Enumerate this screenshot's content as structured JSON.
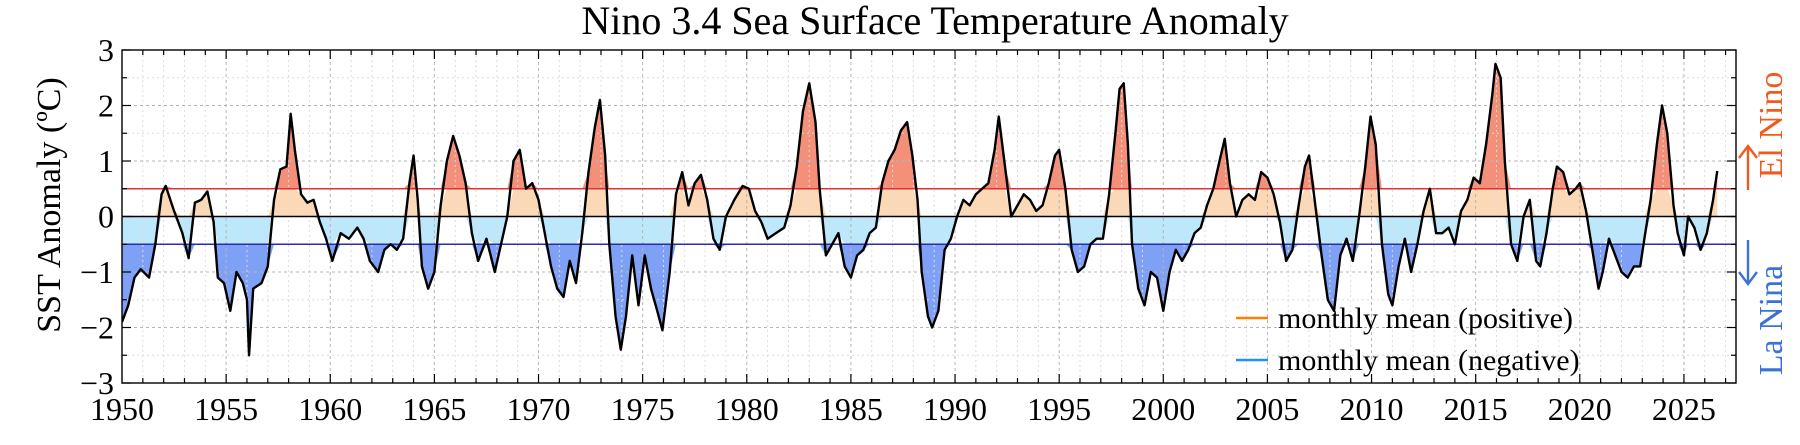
{
  "chart_data": {
    "type": "area",
    "title": "Nino 3.4 Sea Surface Temperature Anomaly",
    "xlabel": "",
    "ylabel": "SST Anomaly (ºC)",
    "xlim": [
      1950,
      2027.5
    ],
    "ylim": [
      -3,
      3
    ],
    "x_ticks": [
      1950,
      1955,
      1960,
      1965,
      1970,
      1975,
      1980,
      1985,
      1990,
      1995,
      2000,
      2005,
      2010,
      2015,
      2020,
      2025
    ],
    "y_ticks": [
      -3,
      -2,
      -1,
      0,
      1,
      2,
      3
    ],
    "thresholds": [
      0.5,
      -0.5
    ],
    "grid": true,
    "side_labels": {
      "el_nino": "El Nino",
      "la_nina": "La Nina"
    },
    "legend": {
      "position": "bottom-right",
      "items": [
        {
          "label": "monthly mean (positive)",
          "color": "#ff8000"
        },
        {
          "label": "monthly mean (negative)",
          "color": "#1e90ff"
        }
      ]
    },
    "colors": {
      "line": "#000000",
      "strong_positive": "#f4907a",
      "weak_positive": "#fcd9b6",
      "weak_negative": "#bde7fb",
      "strong_negative": "#7fa1f5",
      "upper_threshold_line": "#e53030",
      "lower_threshold_line": "#2a2ab4",
      "el_nino_label": "#f05a1e",
      "la_nina_label": "#3a72d8"
    },
    "series": [
      {
        "points": [
          [
            1950.0,
            -1.9
          ],
          [
            1950.3,
            -1.6
          ],
          [
            1950.6,
            -1.1
          ],
          [
            1950.9,
            -0.95
          ],
          [
            1951.3,
            -1.1
          ],
          [
            1951.6,
            -0.5
          ],
          [
            1951.9,
            0.4
          ],
          [
            1952.1,
            0.55
          ],
          [
            1952.5,
            0.1
          ],
          [
            1952.9,
            -0.3
          ],
          [
            1953.2,
            -0.75
          ],
          [
            1953.5,
            0.25
          ],
          [
            1953.8,
            0.3
          ],
          [
            1954.1,
            0.45
          ],
          [
            1954.4,
            -0.1
          ],
          [
            1954.6,
            -1.1
          ],
          [
            1954.9,
            -1.2
          ],
          [
            1955.2,
            -1.7
          ],
          [
            1955.5,
            -1.0
          ],
          [
            1955.8,
            -1.2
          ],
          [
            1956.0,
            -1.5
          ],
          [
            1956.1,
            -2.5
          ],
          [
            1956.3,
            -1.3
          ],
          [
            1956.7,
            -1.2
          ],
          [
            1957.0,
            -0.9
          ],
          [
            1957.3,
            0.3
          ],
          [
            1957.6,
            0.85
          ],
          [
            1957.9,
            0.9
          ],
          [
            1958.1,
            1.85
          ],
          [
            1958.3,
            1.2
          ],
          [
            1958.6,
            0.4
          ],
          [
            1958.9,
            0.25
          ],
          [
            1959.2,
            0.3
          ],
          [
            1959.5,
            -0.1
          ],
          [
            1959.8,
            -0.4
          ],
          [
            1960.1,
            -0.8
          ],
          [
            1960.5,
            -0.3
          ],
          [
            1960.9,
            -0.4
          ],
          [
            1961.3,
            -0.2
          ],
          [
            1961.6,
            -0.4
          ],
          [
            1961.9,
            -0.8
          ],
          [
            1962.3,
            -1.0
          ],
          [
            1962.6,
            -0.6
          ],
          [
            1962.9,
            -0.5
          ],
          [
            1963.2,
            -0.6
          ],
          [
            1963.5,
            -0.4
          ],
          [
            1963.8,
            0.6
          ],
          [
            1964.0,
            1.1
          ],
          [
            1964.2,
            0.3
          ],
          [
            1964.4,
            -0.9
          ],
          [
            1964.7,
            -1.3
          ],
          [
            1965.0,
            -1.0
          ],
          [
            1965.3,
            0.2
          ],
          [
            1965.6,
            1.0
          ],
          [
            1965.9,
            1.45
          ],
          [
            1966.2,
            1.1
          ],
          [
            1966.5,
            0.6
          ],
          [
            1966.8,
            -0.3
          ],
          [
            1967.1,
            -0.8
          ],
          [
            1967.5,
            -0.4
          ],
          [
            1967.9,
            -1.0
          ],
          [
            1968.2,
            -0.5
          ],
          [
            1968.5,
            0.0
          ],
          [
            1968.8,
            1.0
          ],
          [
            1969.1,
            1.2
          ],
          [
            1969.4,
            0.5
          ],
          [
            1969.7,
            0.6
          ],
          [
            1970.0,
            0.3
          ],
          [
            1970.3,
            -0.3
          ],
          [
            1970.6,
            -0.9
          ],
          [
            1970.9,
            -1.3
          ],
          [
            1971.2,
            -1.45
          ],
          [
            1971.5,
            -0.8
          ],
          [
            1971.8,
            -1.2
          ],
          [
            1972.1,
            -0.3
          ],
          [
            1972.4,
            0.8
          ],
          [
            1972.7,
            1.6
          ],
          [
            1972.95,
            2.1
          ],
          [
            1973.2,
            1.1
          ],
          [
            1973.4,
            -0.5
          ],
          [
            1973.7,
            -1.8
          ],
          [
            1973.95,
            -2.4
          ],
          [
            1974.2,
            -1.8
          ],
          [
            1974.5,
            -0.7
          ],
          [
            1974.8,
            -1.6
          ],
          [
            1975.1,
            -0.7
          ],
          [
            1975.4,
            -1.3
          ],
          [
            1975.7,
            -1.7
          ],
          [
            1975.95,
            -2.05
          ],
          [
            1976.3,
            -1.0
          ],
          [
            1976.6,
            0.4
          ],
          [
            1976.9,
            0.8
          ],
          [
            1977.2,
            0.2
          ],
          [
            1977.5,
            0.6
          ],
          [
            1977.8,
            0.75
          ],
          [
            1978.1,
            0.3
          ],
          [
            1978.4,
            -0.4
          ],
          [
            1978.7,
            -0.6
          ],
          [
            1979.0,
            0.0
          ],
          [
            1979.4,
            0.3
          ],
          [
            1979.8,
            0.55
          ],
          [
            1980.1,
            0.5
          ],
          [
            1980.4,
            0.1
          ],
          [
            1980.7,
            -0.1
          ],
          [
            1981.0,
            -0.4
          ],
          [
            1981.4,
            -0.3
          ],
          [
            1981.8,
            -0.2
          ],
          [
            1982.1,
            0.2
          ],
          [
            1982.4,
            0.9
          ],
          [
            1982.7,
            1.9
          ],
          [
            1983.0,
            2.4
          ],
          [
            1983.3,
            1.7
          ],
          [
            1983.5,
            0.5
          ],
          [
            1983.8,
            -0.7
          ],
          [
            1984.1,
            -0.5
          ],
          [
            1984.4,
            -0.3
          ],
          [
            1984.7,
            -0.9
          ],
          [
            1985.0,
            -1.1
          ],
          [
            1985.3,
            -0.7
          ],
          [
            1985.6,
            -0.6
          ],
          [
            1985.9,
            -0.3
          ],
          [
            1986.2,
            -0.2
          ],
          [
            1986.5,
            0.6
          ],
          [
            1986.8,
            1.0
          ],
          [
            1987.1,
            1.2
          ],
          [
            1987.4,
            1.55
          ],
          [
            1987.7,
            1.7
          ],
          [
            1987.95,
            1.1
          ],
          [
            1988.2,
            0.3
          ],
          [
            1988.4,
            -1.0
          ],
          [
            1988.7,
            -1.8
          ],
          [
            1988.9,
            -2.0
          ],
          [
            1989.2,
            -1.7
          ],
          [
            1989.5,
            -0.6
          ],
          [
            1989.8,
            -0.4
          ],
          [
            1990.1,
            0.0
          ],
          [
            1990.4,
            0.3
          ],
          [
            1990.7,
            0.2
          ],
          [
            1991.0,
            0.4
          ],
          [
            1991.3,
            0.5
          ],
          [
            1991.6,
            0.6
          ],
          [
            1991.9,
            1.2
          ],
          [
            1992.1,
            1.8
          ],
          [
            1992.4,
            0.9
          ],
          [
            1992.7,
            0.0
          ],
          [
            1993.0,
            0.2
          ],
          [
            1993.3,
            0.4
          ],
          [
            1993.6,
            0.3
          ],
          [
            1993.9,
            0.1
          ],
          [
            1994.2,
            0.2
          ],
          [
            1994.5,
            0.6
          ],
          [
            1994.8,
            1.1
          ],
          [
            1995.0,
            1.2
          ],
          [
            1995.3,
            0.5
          ],
          [
            1995.6,
            -0.6
          ],
          [
            1995.9,
            -1.0
          ],
          [
            1996.2,
            -0.9
          ],
          [
            1996.5,
            -0.5
          ],
          [
            1996.8,
            -0.4
          ],
          [
            1997.1,
            -0.4
          ],
          [
            1997.4,
            0.4
          ],
          [
            1997.7,
            1.5
          ],
          [
            1997.9,
            2.3
          ],
          [
            1998.1,
            2.4
          ],
          [
            1998.3,
            1.3
          ],
          [
            1998.5,
            -0.5
          ],
          [
            1998.8,
            -1.3
          ],
          [
            1999.1,
            -1.6
          ],
          [
            1999.4,
            -1.0
          ],
          [
            1999.7,
            -1.1
          ],
          [
            2000.0,
            -1.7
          ],
          [
            2000.3,
            -1.0
          ],
          [
            2000.6,
            -0.6
          ],
          [
            2000.9,
            -0.8
          ],
          [
            2001.2,
            -0.6
          ],
          [
            2001.5,
            -0.3
          ],
          [
            2001.8,
            -0.2
          ],
          [
            2002.1,
            0.2
          ],
          [
            2002.4,
            0.5
          ],
          [
            2002.7,
            1.0
          ],
          [
            2002.95,
            1.4
          ],
          [
            2003.2,
            0.6
          ],
          [
            2003.5,
            0.0
          ],
          [
            2003.8,
            0.3
          ],
          [
            2004.1,
            0.4
          ],
          [
            2004.4,
            0.3
          ],
          [
            2004.7,
            0.8
          ],
          [
            2005.0,
            0.7
          ],
          [
            2005.3,
            0.4
          ],
          [
            2005.6,
            -0.1
          ],
          [
            2005.9,
            -0.8
          ],
          [
            2006.2,
            -0.6
          ],
          [
            2006.5,
            0.2
          ],
          [
            2006.8,
            0.9
          ],
          [
            2007.0,
            1.1
          ],
          [
            2007.3,
            0.2
          ],
          [
            2007.6,
            -0.7
          ],
          [
            2007.9,
            -1.5
          ],
          [
            2008.2,
            -1.7
          ],
          [
            2008.5,
            -0.7
          ],
          [
            2008.8,
            -0.4
          ],
          [
            2009.1,
            -0.8
          ],
          [
            2009.4,
            0.0
          ],
          [
            2009.7,
            0.9
          ],
          [
            2009.95,
            1.8
          ],
          [
            2010.2,
            1.3
          ],
          [
            2010.5,
            -0.5
          ],
          [
            2010.8,
            -1.4
          ],
          [
            2011.0,
            -1.6
          ],
          [
            2011.3,
            -0.9
          ],
          [
            2011.6,
            -0.4
          ],
          [
            2011.9,
            -1.0
          ],
          [
            2012.2,
            -0.5
          ],
          [
            2012.5,
            0.1
          ],
          [
            2012.8,
            0.5
          ],
          [
            2013.1,
            -0.3
          ],
          [
            2013.4,
            -0.3
          ],
          [
            2013.7,
            -0.2
          ],
          [
            2014.0,
            -0.5
          ],
          [
            2014.3,
            0.1
          ],
          [
            2014.6,
            0.3
          ],
          [
            2014.9,
            0.7
          ],
          [
            2015.2,
            0.6
          ],
          [
            2015.5,
            1.3
          ],
          [
            2015.8,
            2.2
          ],
          [
            2015.95,
            2.75
          ],
          [
            2016.2,
            2.5
          ],
          [
            2016.4,
            1.0
          ],
          [
            2016.7,
            -0.5
          ],
          [
            2017.0,
            -0.8
          ],
          [
            2017.3,
            0.0
          ],
          [
            2017.6,
            0.3
          ],
          [
            2017.9,
            -0.8
          ],
          [
            2018.1,
            -0.9
          ],
          [
            2018.4,
            -0.3
          ],
          [
            2018.7,
            0.5
          ],
          [
            2018.9,
            0.9
          ],
          [
            2019.2,
            0.8
          ],
          [
            2019.5,
            0.4
          ],
          [
            2019.8,
            0.5
          ],
          [
            2020.0,
            0.6
          ],
          [
            2020.3,
            0.1
          ],
          [
            2020.6,
            -0.6
          ],
          [
            2020.9,
            -1.3
          ],
          [
            2021.1,
            -1.0
          ],
          [
            2021.4,
            -0.4
          ],
          [
            2021.7,
            -0.7
          ],
          [
            2022.0,
            -1.0
          ],
          [
            2022.3,
            -1.1
          ],
          [
            2022.6,
            -0.9
          ],
          [
            2022.9,
            -0.9
          ],
          [
            2023.1,
            -0.4
          ],
          [
            2023.4,
            0.3
          ],
          [
            2023.7,
            1.3
          ],
          [
            2023.95,
            2.0
          ],
          [
            2024.2,
            1.5
          ],
          [
            2024.5,
            0.2
          ],
          [
            2024.7,
            -0.3
          ],
          [
            2025.0,
            -0.7
          ],
          [
            2025.2,
            0.0
          ],
          [
            2025.5,
            -0.2
          ],
          [
            2025.8,
            -0.6
          ],
          [
            2026.1,
            -0.3
          ],
          [
            2026.4,
            0.3
          ],
          [
            2026.6,
            0.82
          ]
        ]
      }
    ]
  }
}
